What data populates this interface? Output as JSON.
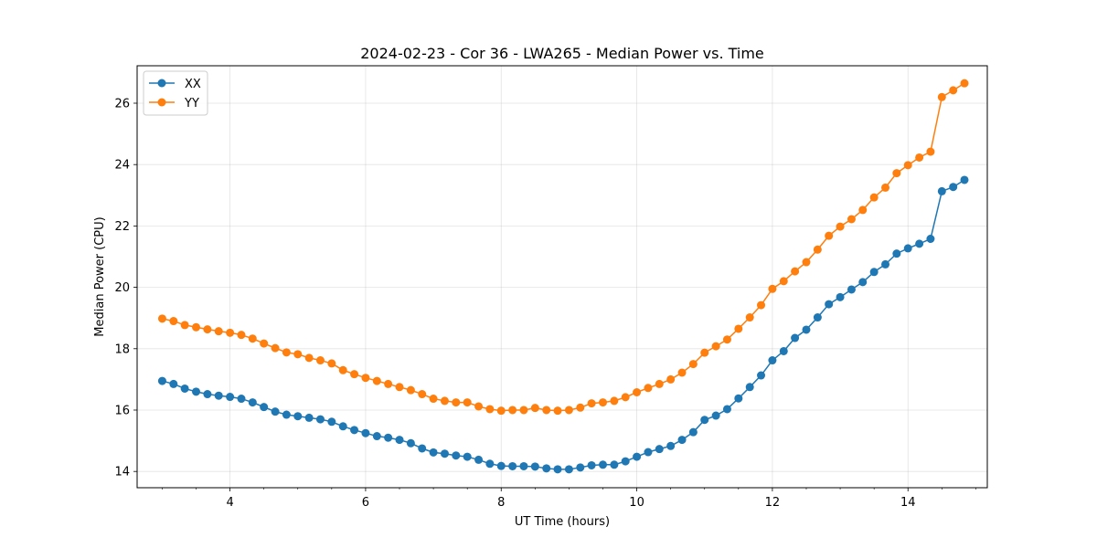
{
  "chart_data": {
    "type": "line",
    "title": "2024-02-23 - Cor 36 - LWA265 - Median Power vs. Time",
    "xlabel": "UT Time (hours)",
    "ylabel": "Median Power (CPU)",
    "xlim": [
      2.63,
      15.17
    ],
    "ylim": [
      13.47,
      27.22
    ],
    "xticks": [
      4,
      6,
      8,
      10,
      12,
      14
    ],
    "xtick_labels": [
      "4",
      "6",
      "8",
      "10",
      "12",
      "14"
    ],
    "yticks": [
      14,
      16,
      18,
      20,
      22,
      24,
      26
    ],
    "ytick_labels": [
      "14",
      "16",
      "18",
      "20",
      "22",
      "24",
      "26"
    ],
    "grid": true,
    "legend_position": "top-left",
    "x": [
      3.0,
      3.167,
      3.333,
      3.5,
      3.667,
      3.833,
      4.0,
      4.167,
      4.333,
      4.5,
      4.667,
      4.833,
      5.0,
      5.167,
      5.333,
      5.5,
      5.667,
      5.833,
      6.0,
      6.167,
      6.333,
      6.5,
      6.667,
      6.833,
      7.0,
      7.167,
      7.333,
      7.5,
      7.667,
      7.833,
      8.0,
      8.167,
      8.333,
      8.5,
      8.667,
      8.833,
      9.0,
      9.167,
      9.333,
      9.5,
      9.667,
      9.833,
      10.0,
      10.167,
      10.333,
      10.5,
      10.667,
      10.833,
      11.0,
      11.167,
      11.333,
      11.5,
      11.667,
      11.833,
      12.0,
      12.167,
      12.333,
      12.5,
      12.667,
      12.833,
      13.0,
      13.167,
      13.333,
      13.5,
      13.667,
      13.833,
      14.0,
      14.167,
      14.333,
      14.5,
      14.667,
      14.833
    ],
    "series": [
      {
        "name": "XX",
        "color": "#1f77b4",
        "values": [
          16.95,
          16.85,
          16.7,
          16.6,
          16.52,
          16.47,
          16.43,
          16.37,
          16.25,
          16.1,
          15.95,
          15.85,
          15.8,
          15.75,
          15.7,
          15.62,
          15.47,
          15.35,
          15.25,
          15.15,
          15.1,
          15.03,
          14.92,
          14.75,
          14.62,
          14.58,
          14.52,
          14.48,
          14.38,
          14.25,
          14.18,
          14.17,
          14.17,
          14.16,
          14.1,
          14.07,
          14.07,
          14.13,
          14.2,
          14.22,
          14.22,
          14.33,
          14.48,
          14.63,
          14.73,
          14.83,
          15.03,
          15.28,
          15.68,
          15.82,
          16.03,
          16.38,
          16.75,
          17.13,
          17.62,
          17.92,
          18.35,
          18.62,
          19.02,
          19.45,
          19.68,
          19.93,
          20.17,
          20.5,
          20.75,
          21.1,
          21.27,
          21.42,
          21.58,
          23.13,
          23.27,
          23.5
        ]
      },
      {
        "name": "YY",
        "color": "#ff7f0e",
        "values": [
          18.98,
          18.9,
          18.77,
          18.7,
          18.63,
          18.57,
          18.52,
          18.45,
          18.33,
          18.17,
          18.02,
          17.88,
          17.82,
          17.7,
          17.62,
          17.52,
          17.3,
          17.17,
          17.05,
          16.95,
          16.85,
          16.75,
          16.65,
          16.52,
          16.37,
          16.3,
          16.25,
          16.25,
          16.12,
          16.03,
          15.98,
          16.0,
          16.0,
          16.07,
          16.0,
          15.98,
          16.0,
          16.08,
          16.22,
          16.25,
          16.3,
          16.42,
          16.58,
          16.72,
          16.85,
          17.0,
          17.22,
          17.5,
          17.87,
          18.08,
          18.3,
          18.65,
          19.02,
          19.42,
          19.95,
          20.2,
          20.52,
          20.82,
          21.23,
          21.68,
          21.98,
          22.22,
          22.52,
          22.93,
          23.25,
          23.72,
          23.98,
          24.23,
          24.42,
          26.2,
          26.42,
          26.65
        ]
      }
    ]
  }
}
